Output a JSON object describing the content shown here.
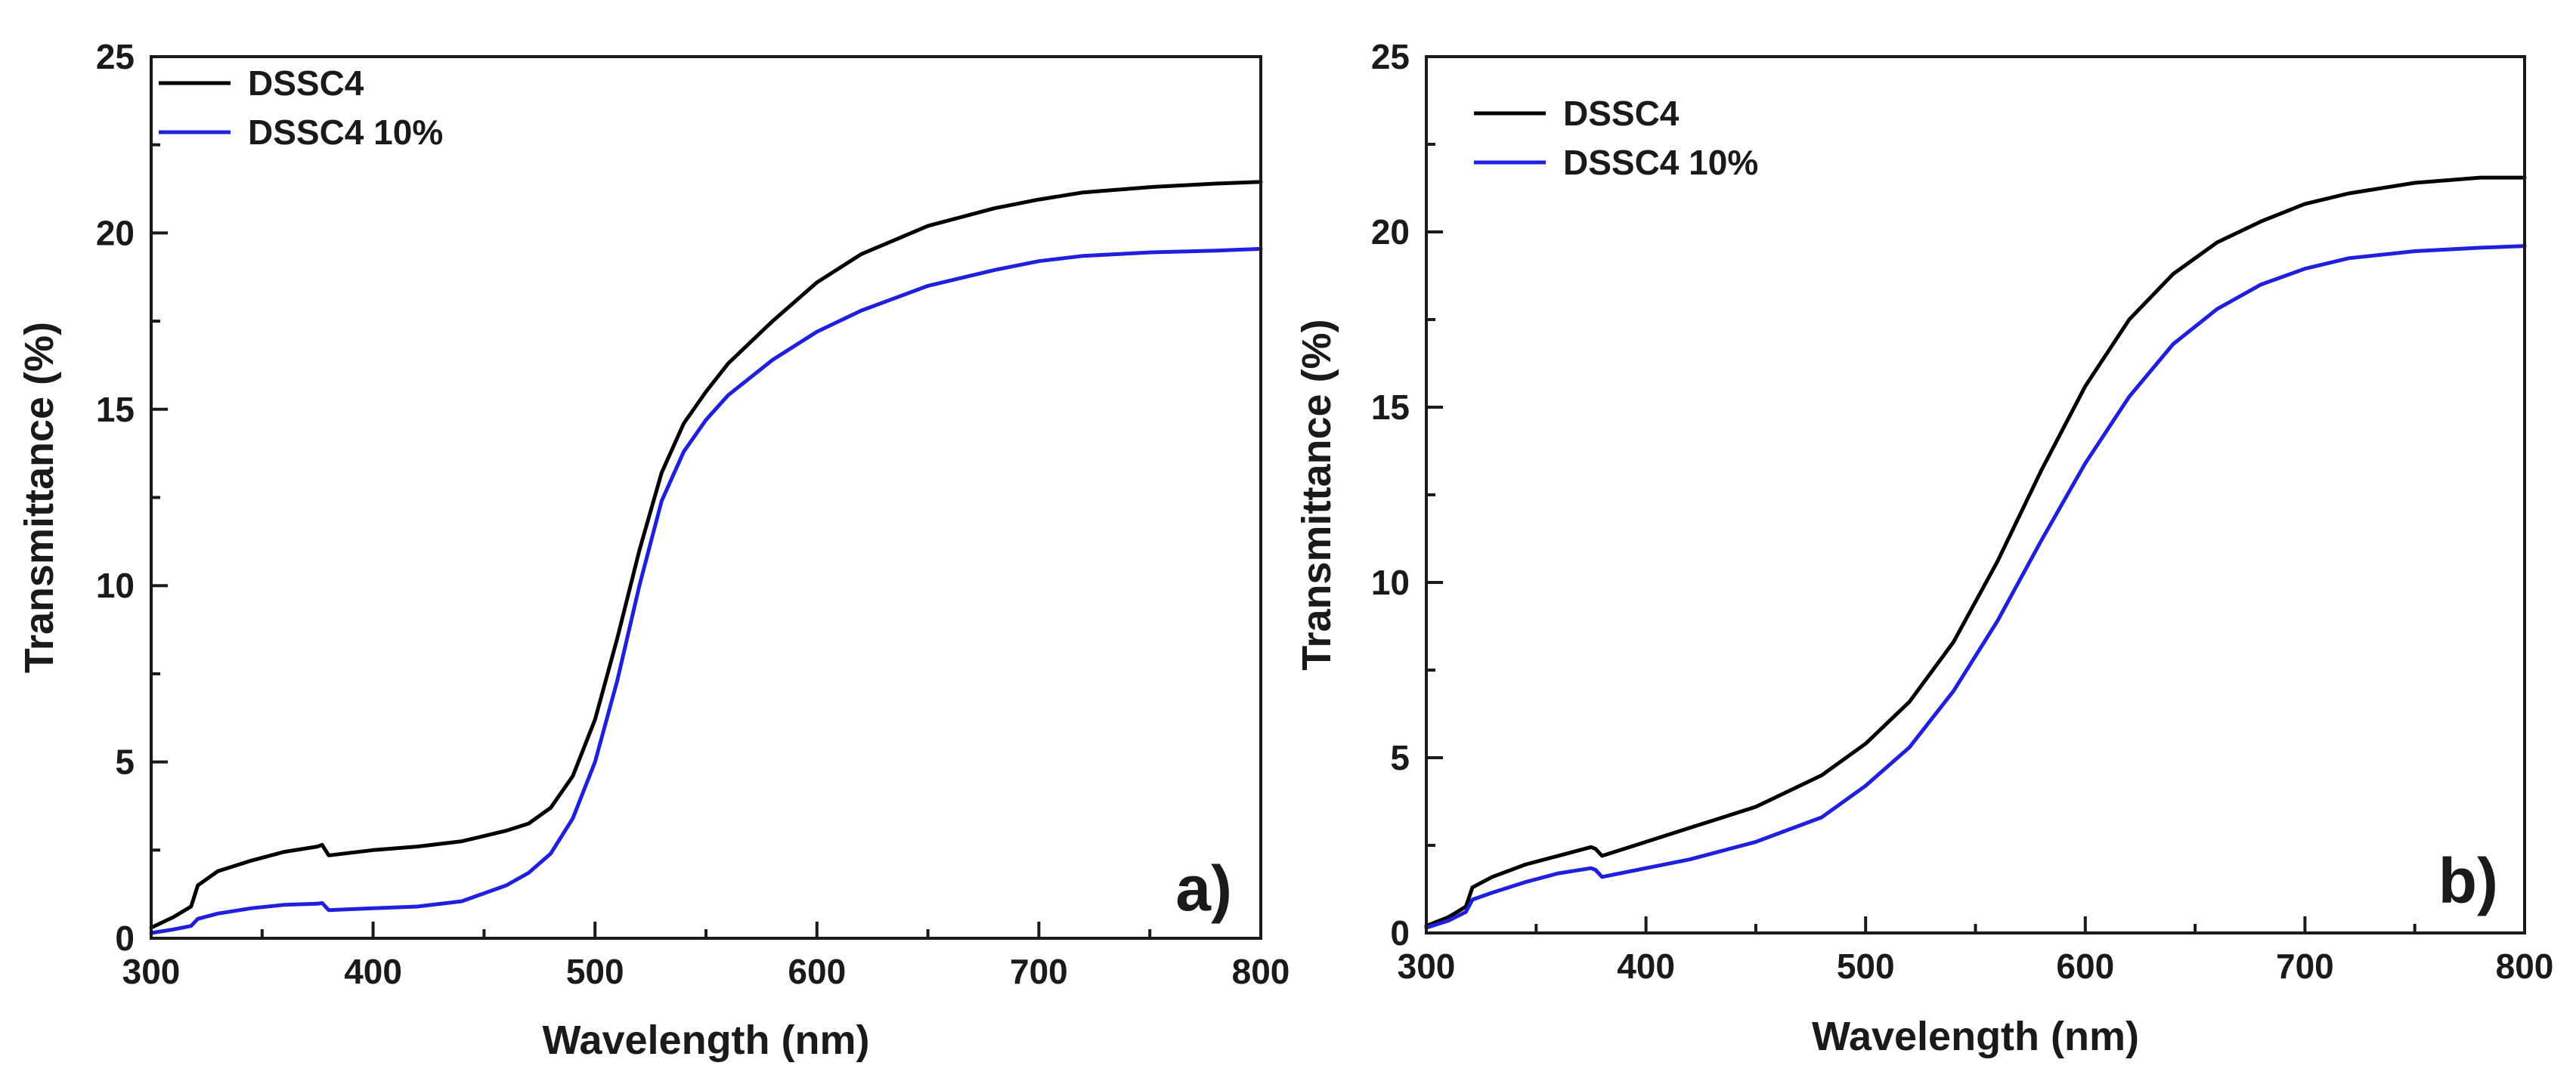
{
  "chart_data": [
    {
      "type": "line",
      "panel_label": "a)",
      "xlabel": "Wavelength (nm)",
      "ylabel": "Transmittance (%)",
      "xlim": [
        300,
        800
      ],
      "ylim": [
        0,
        25
      ],
      "xticks": [
        300,
        400,
        500,
        600,
        700,
        800
      ],
      "yticks": [
        0,
        5,
        10,
        15,
        20,
        25
      ],
      "grid": false,
      "legend_position": "top-left",
      "series": [
        {
          "name": "DSSC4",
          "color": "#000000",
          "x": [
            300,
            310,
            318,
            321,
            330,
            345,
            360,
            375,
            377,
            380,
            400,
            420,
            440,
            460,
            470,
            480,
            490,
            500,
            510,
            520,
            530,
            540,
            550,
            560,
            580,
            600,
            620,
            650,
            680,
            700,
            720,
            750,
            780,
            800
          ],
          "y": [
            0.3,
            0.6,
            0.9,
            1.5,
            1.9,
            2.2,
            2.45,
            2.6,
            2.65,
            2.35,
            2.5,
            2.6,
            2.75,
            3.05,
            3.25,
            3.7,
            4.6,
            6.2,
            8.5,
            11.0,
            13.2,
            14.6,
            15.5,
            16.3,
            17.5,
            18.6,
            19.4,
            20.2,
            20.7,
            20.95,
            21.15,
            21.3,
            21.4,
            21.45
          ]
        },
        {
          "name": "DSSC4 10%",
          "color": "#1f1fe0",
          "x": [
            300,
            310,
            318,
            321,
            330,
            345,
            360,
            375,
            377,
            380,
            400,
            420,
            440,
            460,
            470,
            480,
            490,
            500,
            510,
            520,
            530,
            540,
            550,
            560,
            580,
            600,
            620,
            650,
            680,
            700,
            720,
            750,
            780,
            800
          ],
          "y": [
            0.15,
            0.25,
            0.35,
            0.55,
            0.7,
            0.85,
            0.95,
            0.98,
            1.0,
            0.8,
            0.85,
            0.9,
            1.05,
            1.5,
            1.85,
            2.4,
            3.4,
            5.0,
            7.3,
            10.0,
            12.4,
            13.8,
            14.7,
            15.4,
            16.4,
            17.2,
            17.8,
            18.5,
            18.95,
            19.2,
            19.35,
            19.45,
            19.5,
            19.55
          ]
        }
      ]
    },
    {
      "type": "line",
      "panel_label": "b)",
      "xlabel": "Wavelength (nm)",
      "ylabel": "Transmittance (%)",
      "xlim": [
        300,
        800
      ],
      "ylim": [
        0,
        25
      ],
      "xticks": [
        300,
        400,
        500,
        600,
        700,
        800
      ],
      "yticks": [
        0,
        5,
        10,
        15,
        20,
        25
      ],
      "grid": false,
      "legend_position": "top-left",
      "series": [
        {
          "name": "DSSC4",
          "color": "#000000",
          "x": [
            300,
            310,
            318,
            321,
            330,
            345,
            360,
            375,
            377,
            380,
            400,
            420,
            450,
            480,
            500,
            520,
            540,
            560,
            580,
            600,
            620,
            640,
            660,
            680,
            700,
            720,
            750,
            780,
            800
          ],
          "y": [
            0.2,
            0.45,
            0.75,
            1.3,
            1.6,
            1.95,
            2.2,
            2.45,
            2.4,
            2.2,
            2.6,
            3.0,
            3.6,
            4.5,
            5.4,
            6.6,
            8.3,
            10.6,
            13.2,
            15.6,
            17.5,
            18.8,
            19.7,
            20.3,
            20.8,
            21.1,
            21.4,
            21.55,
            21.55
          ]
        },
        {
          "name": "DSSC4 10%",
          "color": "#1f1fe0",
          "x": [
            300,
            310,
            318,
            321,
            330,
            345,
            360,
            375,
            377,
            380,
            400,
            420,
            450,
            480,
            500,
            520,
            540,
            560,
            580,
            600,
            620,
            640,
            660,
            680,
            700,
            720,
            750,
            780,
            800
          ],
          "y": [
            0.15,
            0.35,
            0.6,
            0.95,
            1.15,
            1.45,
            1.7,
            1.85,
            1.8,
            1.6,
            1.85,
            2.1,
            2.6,
            3.3,
            4.2,
            5.3,
            6.9,
            8.9,
            11.2,
            13.4,
            15.3,
            16.8,
            17.8,
            18.5,
            18.95,
            19.25,
            19.45,
            19.55,
            19.6
          ]
        }
      ]
    }
  ]
}
